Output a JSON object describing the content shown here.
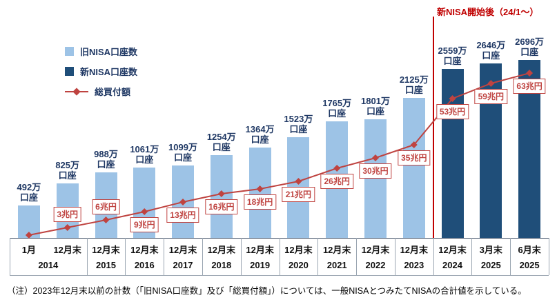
{
  "annotation": {
    "text": "新NISA開始後（24/1～）",
    "color": "#c00000"
  },
  "legend": {
    "items": [
      {
        "label": "旧NISA口座数",
        "color": "#9dc3e6"
      },
      {
        "label": "新NISA口座数",
        "color": "#1f4e79"
      },
      {
        "label": "総買付額",
        "color": "#bf4340"
      }
    ]
  },
  "note": "（注）2023年12月末以前の計数（「旧NISA口座数」及び「総買付額」）については、一般NISAとつみたてNISAの合計値を示している。",
  "chart_data": {
    "type": "bar+line",
    "bar_unit": "万口座",
    "line_unit": "兆円",
    "account_unit_value": "万",
    "account_unit_name": "口座",
    "purchase_unit": "兆円",
    "bar_axis_range": [
      0,
      2800
    ],
    "line_axis_range": [
      0,
      65
    ],
    "grid": false,
    "legend_position": "top-left",
    "series_colors": {
      "old": "#9dc3e6",
      "new": "#1f4e79",
      "line": "#bf4340"
    },
    "columns": [
      {
        "month": "1月",
        "series": "old",
        "accounts": 492,
        "purchase": 0
      },
      {
        "month": "12月末",
        "series": "old",
        "accounts": 825,
        "purchase": 3
      },
      {
        "month": "12月末",
        "series": "old",
        "accounts": 988,
        "purchase": 6
      },
      {
        "month": "12月末",
        "series": "old",
        "accounts": 1061,
        "purchase": 9
      },
      {
        "month": "12月末",
        "series": "old",
        "accounts": 1099,
        "purchase": 13
      },
      {
        "month": "12月末",
        "series": "old",
        "accounts": 1254,
        "purchase": 16
      },
      {
        "month": "12月末",
        "series": "old",
        "accounts": 1364,
        "purchase": 18
      },
      {
        "month": "12月末",
        "series": "old",
        "accounts": 1523,
        "purchase": 21
      },
      {
        "month": "12月末",
        "series": "old",
        "accounts": 1765,
        "purchase": 26
      },
      {
        "month": "12月末",
        "series": "old",
        "accounts": 1801,
        "purchase": 30
      },
      {
        "month": "12月末",
        "series": "old",
        "accounts": 2125,
        "purchase": 35
      },
      {
        "month": "12月末",
        "series": "new",
        "accounts": 2559,
        "purchase": 53
      },
      {
        "month": "3月末",
        "series": "new",
        "accounts": 2646,
        "purchase": 59
      },
      {
        "month": "6月末",
        "series": "new",
        "accounts": 2696,
        "purchase": 63
      }
    ],
    "year_groups": [
      {
        "label": "2014",
        "span": 2
      },
      {
        "label": "2015",
        "span": 1
      },
      {
        "label": "2016",
        "span": 1
      },
      {
        "label": "2017",
        "span": 1
      },
      {
        "label": "2018",
        "span": 1
      },
      {
        "label": "2019",
        "span": 1
      },
      {
        "label": "2020",
        "span": 1
      },
      {
        "label": "2021",
        "span": 1
      },
      {
        "label": "2022",
        "span": 1
      },
      {
        "label": "2023",
        "span": 1
      },
      {
        "label": "2024",
        "span": 1
      },
      {
        "label": "2025",
        "span": 1
      },
      {
        "label": "2025",
        "span": 1
      }
    ]
  }
}
